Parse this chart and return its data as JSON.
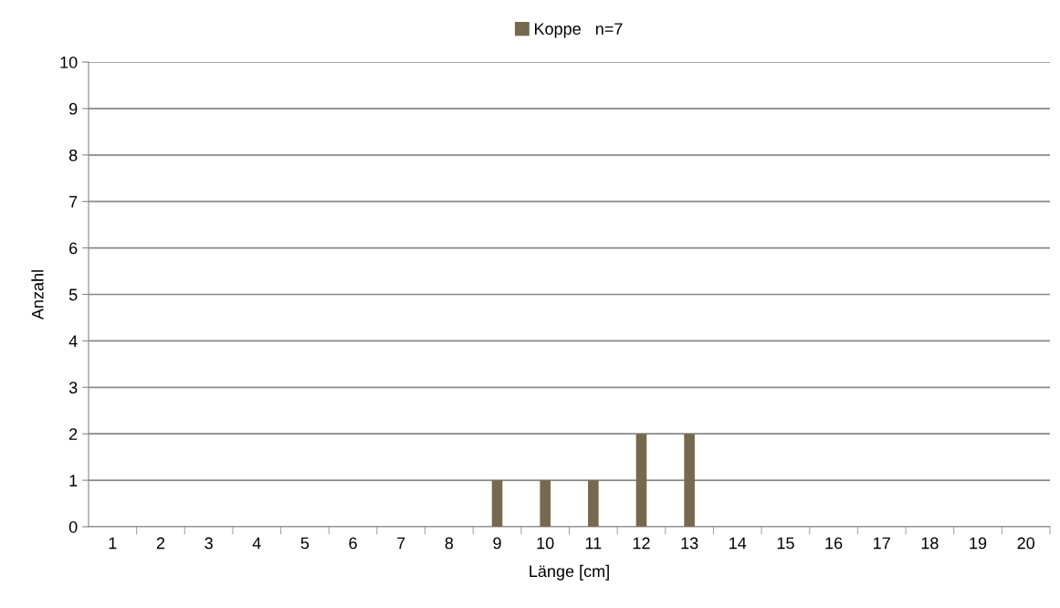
{
  "chart_data": {
    "type": "bar",
    "xlabel": "Länge [cm]",
    "ylabel": "Anzahl",
    "categories": [
      "1",
      "2",
      "3",
      "4",
      "5",
      "6",
      "7",
      "8",
      "9",
      "10",
      "11",
      "12",
      "13",
      "14",
      "15",
      "16",
      "17",
      "18",
      "19",
      "20"
    ],
    "series": [
      {
        "name": "Koppe   n=7",
        "color": "#75694f",
        "values": [
          0,
          0,
          0,
          0,
          0,
          0,
          0,
          0,
          1,
          1,
          1,
          2,
          2,
          0,
          0,
          0,
          0,
          0,
          0,
          0
        ]
      }
    ],
    "ylim": [
      0,
      10
    ],
    "yticks": [
      0,
      1,
      2,
      3,
      4,
      5,
      6,
      7,
      8,
      9,
      10
    ],
    "grid": "y",
    "legend": "top"
  }
}
